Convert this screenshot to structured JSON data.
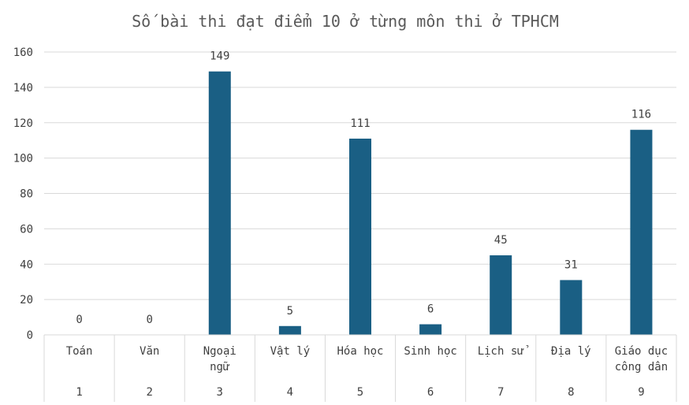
{
  "chart_data": {
    "type": "bar",
    "title": "Số bài thi đạt điểm 10 ở từng môn thi ở TPHCM",
    "xlabel": "",
    "ylabel": "",
    "ylim": [
      0,
      160
    ],
    "yticks": [
      0,
      20,
      40,
      60,
      80,
      100,
      120,
      140,
      160
    ],
    "grid": true,
    "legend": "none",
    "categories": [
      {
        "name": [
          "Toán"
        ],
        "index": "1"
      },
      {
        "name": [
          "Văn"
        ],
        "index": "2"
      },
      {
        "name": [
          "Ngoại",
          "ngữ"
        ],
        "index": "3"
      },
      {
        "name": [
          "Vật lý"
        ],
        "index": "4"
      },
      {
        "name": [
          "Hóa học"
        ],
        "index": "5"
      },
      {
        "name": [
          "Sinh học"
        ],
        "index": "6"
      },
      {
        "name": [
          "Lịch sử"
        ],
        "index": "7"
      },
      {
        "name": [
          "Địa lý"
        ],
        "index": "8"
      },
      {
        "name": [
          "Giáo dục",
          "công dân"
        ],
        "index": "9"
      }
    ],
    "values": [
      0,
      0,
      149,
      5,
      111,
      6,
      45,
      31,
      116
    ],
    "bar_color": "#1a5f84",
    "grid_color": "#d9d9d9"
  }
}
